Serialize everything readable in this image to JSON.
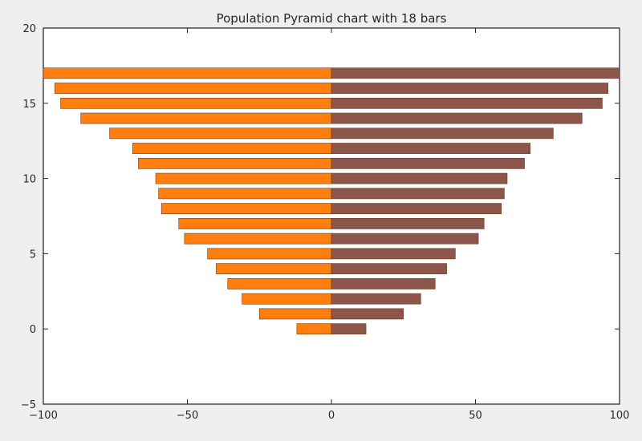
{
  "chart_data": {
    "type": "bar",
    "orientation": "horizontal",
    "title": "Population Pyramid chart with 18 bars",
    "xlabel": "",
    "ylabel": "",
    "xlim": [
      -100,
      100
    ],
    "ylim": [
      -5,
      20
    ],
    "xticks": [
      -100,
      -50,
      0,
      50,
      100
    ],
    "xtick_labels": [
      "−100",
      "−50",
      "0",
      "50",
      "100"
    ],
    "yticks": [
      -5,
      0,
      5,
      10,
      15,
      20
    ],
    "ytick_labels": [
      "−5",
      "0",
      "5",
      "10",
      "15",
      "20"
    ],
    "grid": false,
    "categories": [
      0,
      1,
      2,
      3,
      4,
      5,
      6,
      7,
      8,
      9,
      10,
      11,
      12,
      13,
      14,
      15,
      16,
      17
    ],
    "series": [
      {
        "color": "#ff7f0e",
        "values": [
          -12,
          -25,
          -31,
          -36,
          -40,
          -43,
          -51,
          -53,
          -59,
          -60,
          -61,
          -67,
          -69,
          -77,
          -87,
          -94,
          -96,
          -100
        ]
      },
      {
        "color": "#8c564b",
        "values": [
          12,
          25,
          31,
          36,
          40,
          43,
          51,
          53,
          59,
          60,
          61,
          67,
          69,
          77,
          87,
          94,
          96,
          100
        ]
      }
    ]
  }
}
